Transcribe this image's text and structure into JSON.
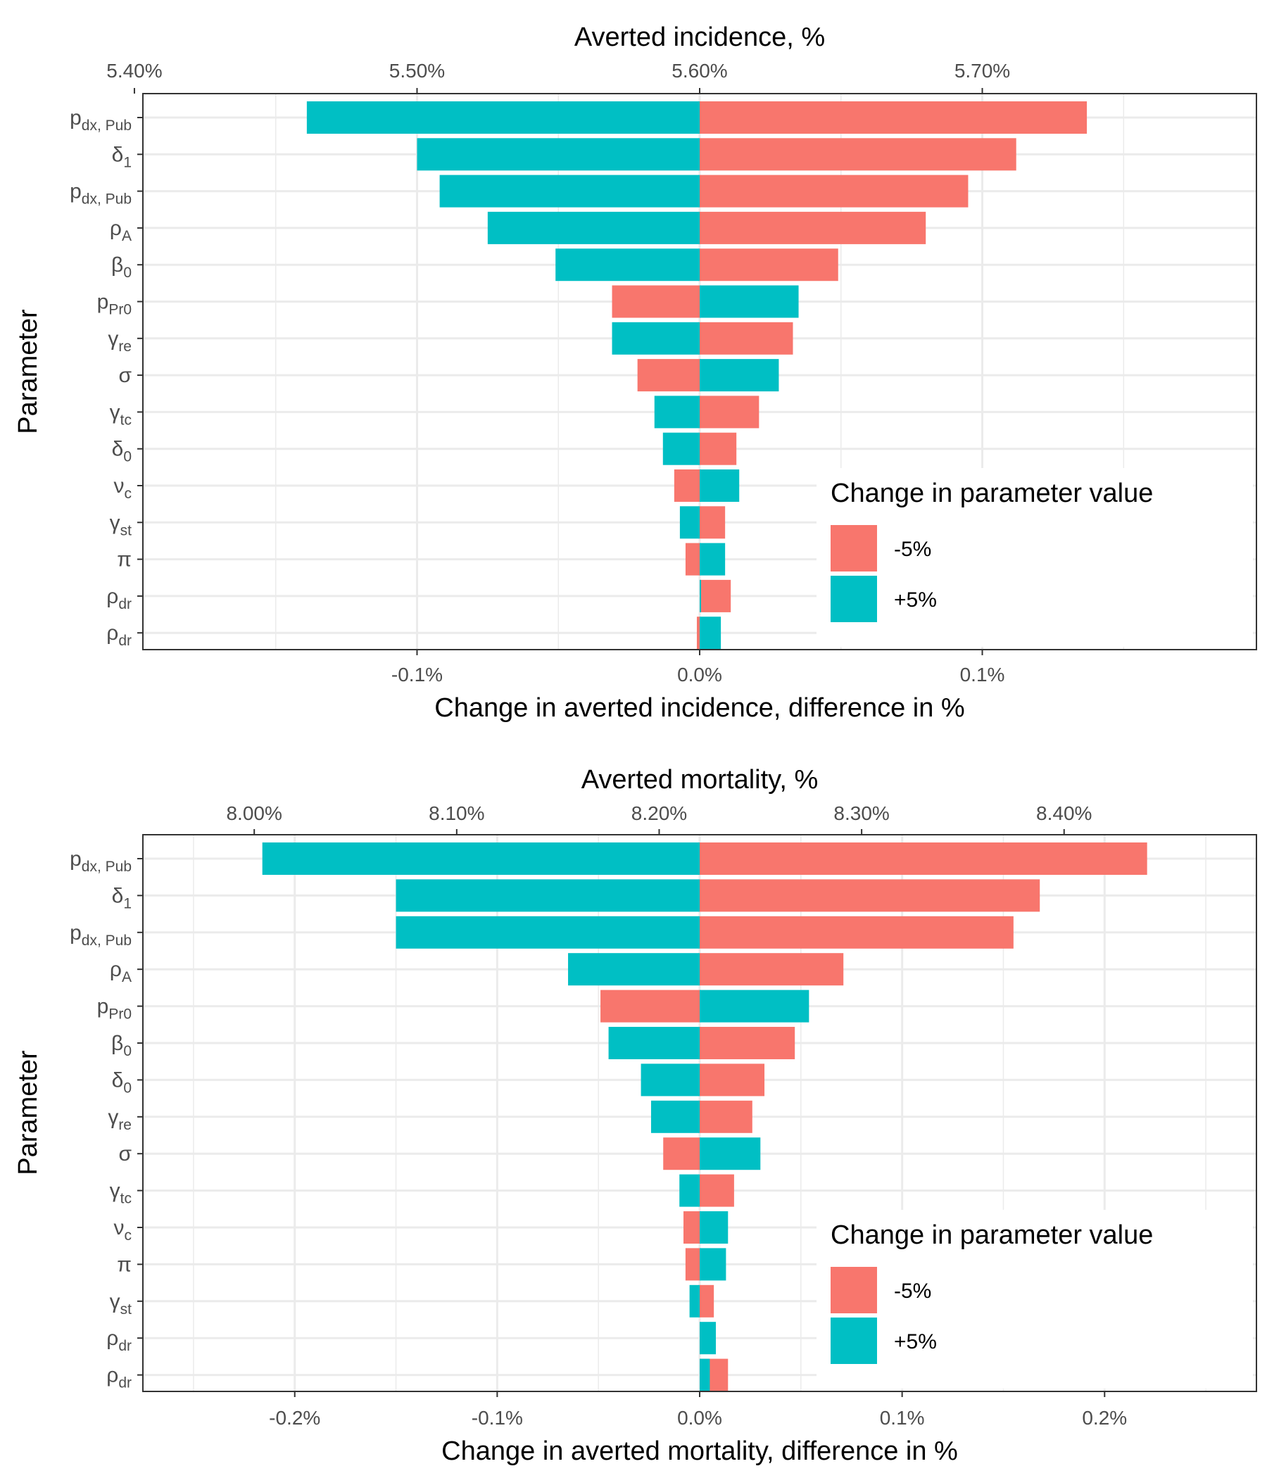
{
  "legend": {
    "title": "Change in parameter value",
    "items": [
      {
        "label": "-5%",
        "color": "#F8766D"
      },
      {
        "label": "+5%",
        "color": "#00BFC4"
      }
    ]
  },
  "chart_data": [
    {
      "type": "bar",
      "orientation": "horizontal",
      "ylabel": "Parameter",
      "xlabel": "Change in averted incidence, difference in %",
      "secondary_xlabel": "Averted incidence, %",
      "baseline_value_percent": 5.6,
      "xlim": [
        -0.197,
        0.197
      ],
      "x_ticks": [
        {
          "value": -0.1,
          "label": "-0.1%"
        },
        {
          "value": 0.0,
          "label": "0.0%"
        },
        {
          "value": 0.1,
          "label": "0.1%"
        }
      ],
      "secondary_x_ticks": [
        {
          "value": 5.4,
          "label": "5.40%"
        },
        {
          "value": 5.5,
          "label": "5.50%"
        },
        {
          "value": 5.6,
          "label": "5.60%"
        },
        {
          "value": 5.7,
          "label": "5.70%"
        }
      ],
      "legend_position": "bottom-right inside",
      "parameters": [
        {
          "base": "p",
          "sub": "dx, Pub",
          "minus5": 0.137,
          "plus5": -0.139
        },
        {
          "base": "δ",
          "sub": "1",
          "minus5": 0.112,
          "plus5": -0.1
        },
        {
          "base": "p",
          "sub": "dx, Pub",
          "minus5": 0.095,
          "plus5": -0.092
        },
        {
          "base": "ρ",
          "sub": "A",
          "minus5": 0.08,
          "plus5": -0.075
        },
        {
          "base": "β",
          "sub": "0",
          "minus5": 0.049,
          "plus5": -0.051
        },
        {
          "base": "p",
          "sub": "Pr0",
          "minus5": -0.031,
          "plus5": 0.035
        },
        {
          "base": "γ",
          "sub": "re",
          "minus5": 0.033,
          "plus5": -0.031
        },
        {
          "base": "σ",
          "sub": "",
          "minus5": -0.022,
          "plus5": 0.028
        },
        {
          "base": "γ",
          "sub": "tc",
          "minus5": 0.021,
          "plus5": -0.016
        },
        {
          "base": "δ",
          "sub": "0",
          "minus5": 0.013,
          "plus5": -0.013
        },
        {
          "base": "ν",
          "sub": "c",
          "minus5": -0.009,
          "plus5": 0.014
        },
        {
          "base": "γ",
          "sub": "st",
          "minus5": 0.009,
          "plus5": -0.007
        },
        {
          "base": "π",
          "sub": "",
          "minus5": -0.005,
          "plus5": 0.009
        },
        {
          "base": "ρ",
          "sub": "dr",
          "minus5": 0.011,
          "plus5": 0.0005
        },
        {
          "base": "ρ",
          "sub": "dr",
          "minus5": -0.001,
          "plus5": 0.0075
        }
      ]
    },
    {
      "type": "bar",
      "orientation": "horizontal",
      "ylabel": "Parameter",
      "xlabel": "Change in averted mortality, difference in %",
      "secondary_xlabel": "Averted mortality, %",
      "baseline_value_percent": 8.22,
      "xlim": [
        -0.275,
        0.275
      ],
      "x_ticks": [
        {
          "value": -0.2,
          "label": "-0.2%"
        },
        {
          "value": -0.1,
          "label": "-0.1%"
        },
        {
          "value": 0.0,
          "label": "0.0%"
        },
        {
          "value": 0.1,
          "label": "0.1%"
        },
        {
          "value": 0.2,
          "label": "0.2%"
        }
      ],
      "secondary_x_ticks": [
        {
          "value": 8.0,
          "label": "8.00%"
        },
        {
          "value": 8.1,
          "label": "8.10%"
        },
        {
          "value": 8.2,
          "label": "8.20%"
        },
        {
          "value": 8.3,
          "label": "8.30%"
        },
        {
          "value": 8.4,
          "label": "8.40%"
        }
      ],
      "legend_position": "bottom-right inside",
      "parameters": [
        {
          "base": "p",
          "sub": "dx, Pub",
          "minus5": 0.221,
          "plus5": -0.216
        },
        {
          "base": "δ",
          "sub": "1",
          "minus5": 0.168,
          "plus5": -0.15
        },
        {
          "base": "p",
          "sub": "dx, Pub",
          "minus5": 0.155,
          "plus5": -0.15
        },
        {
          "base": "ρ",
          "sub": "A",
          "minus5": 0.071,
          "plus5": -0.065
        },
        {
          "base": "p",
          "sub": "Pr0",
          "minus5": -0.049,
          "plus5": 0.054
        },
        {
          "base": "β",
          "sub": "0",
          "minus5": 0.047,
          "plus5": -0.045
        },
        {
          "base": "δ",
          "sub": "0",
          "minus5": 0.032,
          "plus5": -0.029
        },
        {
          "base": "γ",
          "sub": "re",
          "minus5": 0.026,
          "plus5": -0.024
        },
        {
          "base": "σ",
          "sub": "",
          "minus5": -0.018,
          "plus5": 0.03
        },
        {
          "base": "γ",
          "sub": "tc",
          "minus5": 0.017,
          "plus5": -0.01
        },
        {
          "base": "ν",
          "sub": "c",
          "minus5": -0.008,
          "plus5": 0.014
        },
        {
          "base": "π",
          "sub": "",
          "minus5": -0.007,
          "plus5": 0.013
        },
        {
          "base": "γ",
          "sub": "st",
          "minus5": 0.007,
          "plus5": -0.005
        },
        {
          "base": "ρ",
          "sub": "dr",
          "minus5": 0.0,
          "plus5": 0.008
        },
        {
          "base": "ρ",
          "sub": "dr",
          "minus5": 0.014,
          "plus5": 0.005
        }
      ]
    }
  ]
}
